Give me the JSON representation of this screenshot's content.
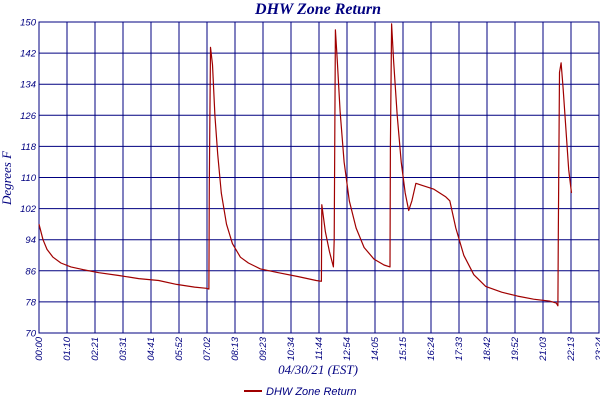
{
  "chart_data": {
    "type": "line",
    "title": "DHW Zone Return",
    "xlabel": "04/30/21 (EST)",
    "ylabel": "Degrees F",
    "ylim": [
      70,
      150
    ],
    "yticks": [
      70,
      78,
      86,
      94,
      102,
      110,
      118,
      126,
      134,
      142,
      150
    ],
    "xlim": [
      "00:00",
      "23:24"
    ],
    "xticks": [
      "00:00",
      "01:10",
      "02:21",
      "03:31",
      "04:41",
      "05:52",
      "07:02",
      "08:13",
      "09:23",
      "10:34",
      "11:44",
      "12:54",
      "14:05",
      "15:15",
      "16:24",
      "17:33",
      "18:42",
      "19:52",
      "21:03",
      "22:13",
      "23:24"
    ],
    "grid": true,
    "legend_position": "bottom",
    "series": [
      {
        "name": "DHW Zone Return",
        "color": "#a00000",
        "points": [
          [
            "00:00",
            98
          ],
          [
            "00:10",
            94
          ],
          [
            "00:20",
            91.5
          ],
          [
            "00:35",
            89.5
          ],
          [
            "00:55",
            88
          ],
          [
            "01:20",
            87
          ],
          [
            "01:50",
            86.3
          ],
          [
            "02:30",
            85.5
          ],
          [
            "03:20",
            84.8
          ],
          [
            "04:10",
            84
          ],
          [
            "05:00",
            83.5
          ],
          [
            "05:45",
            82.5
          ],
          [
            "06:30",
            81.8
          ],
          [
            "07:00",
            81.5
          ],
          [
            "07:06",
            81.3
          ],
          [
            "07:07",
            108
          ],
          [
            "07:10",
            143.5
          ],
          [
            "07:15",
            139
          ],
          [
            "07:21",
            126
          ],
          [
            "07:28",
            116
          ],
          [
            "07:37",
            106
          ],
          [
            "07:50",
            98
          ],
          [
            "08:05",
            93
          ],
          [
            "08:25",
            89.5
          ],
          [
            "08:45",
            88
          ],
          [
            "09:15",
            86.5
          ],
          [
            "10:00",
            85.5
          ],
          [
            "10:50",
            84.5
          ],
          [
            "11:35",
            83.5
          ],
          [
            "11:48",
            83.3
          ],
          [
            "11:49",
            103
          ],
          [
            "11:58",
            96
          ],
          [
            "12:08",
            91
          ],
          [
            "12:18",
            87
          ],
          [
            "12:20",
            94
          ],
          [
            "12:23",
            148
          ],
          [
            "12:28",
            140
          ],
          [
            "12:35",
            127
          ],
          [
            "12:45",
            114
          ],
          [
            "12:58",
            104
          ],
          [
            "13:15",
            97
          ],
          [
            "13:35",
            92
          ],
          [
            "14:00",
            89
          ],
          [
            "14:25",
            87.5
          ],
          [
            "14:40",
            87
          ],
          [
            "14:41",
            118
          ],
          [
            "14:44",
            149.5
          ],
          [
            "14:49",
            140
          ],
          [
            "14:58",
            126
          ],
          [
            "15:08",
            114
          ],
          [
            "15:18",
            106
          ],
          [
            "15:27",
            101.5
          ],
          [
            "15:35",
            104
          ],
          [
            "15:45",
            108.5
          ],
          [
            "16:00",
            108
          ],
          [
            "16:30",
            107
          ],
          [
            "17:00",
            105
          ],
          [
            "17:10",
            104
          ],
          [
            "17:25",
            97
          ],
          [
            "17:45",
            90
          ],
          [
            "18:10",
            85
          ],
          [
            "18:40",
            82
          ],
          [
            "19:20",
            80.5
          ],
          [
            "20:00",
            79.5
          ],
          [
            "20:40",
            78.7
          ],
          [
            "21:20",
            78.2
          ],
          [
            "21:37",
            77.7
          ],
          [
            "21:41",
            77
          ],
          [
            "21:42",
            95
          ],
          [
            "21:45",
            137
          ],
          [
            "21:49",
            139.5
          ],
          [
            "21:54",
            133
          ],
          [
            "22:00",
            124
          ],
          [
            "22:08",
            112
          ],
          [
            "22:15",
            106
          ]
        ]
      }
    ]
  }
}
